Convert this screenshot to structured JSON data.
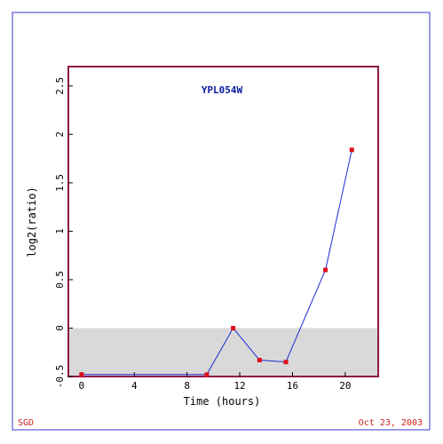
{
  "footer": {
    "source": "SGD",
    "date": "Oct 23, 2003"
  },
  "colors": {
    "frame": "#3a3acc",
    "plot_border": "#8b1a4a",
    "shade": "#d9d9d9",
    "line": "#1a2ad6",
    "marker": "#e0101a",
    "title": "#0a1aa0",
    "footer_text": "#cc2222"
  },
  "chart_data": {
    "type": "line",
    "title": "YPL054W",
    "xlabel": "Time (hours)",
    "ylabel": "log2(ratio)",
    "xlim": [
      -1,
      22.5
    ],
    "ylim": [
      -0.5,
      2.7
    ],
    "x_ticks": [
      0,
      4,
      8,
      12,
      16,
      20
    ],
    "y_ticks": [
      -0.5,
      0,
      0.5,
      1,
      1.5,
      2,
      2.5
    ],
    "y_tick_labels": [
      "-0.5",
      "0",
      "0.5",
      "1",
      "1.5",
      "2",
      "2.5"
    ],
    "shaded_region": [
      -0.5,
      0
    ],
    "grid": false,
    "series": [
      {
        "x": [
          0,
          9.5,
          11.5,
          13.5,
          15.5,
          18.5,
          20.5
        ],
        "y": [
          -0.48,
          -0.48,
          0.0,
          -0.33,
          -0.35,
          0.6,
          1.84
        ]
      }
    ]
  }
}
